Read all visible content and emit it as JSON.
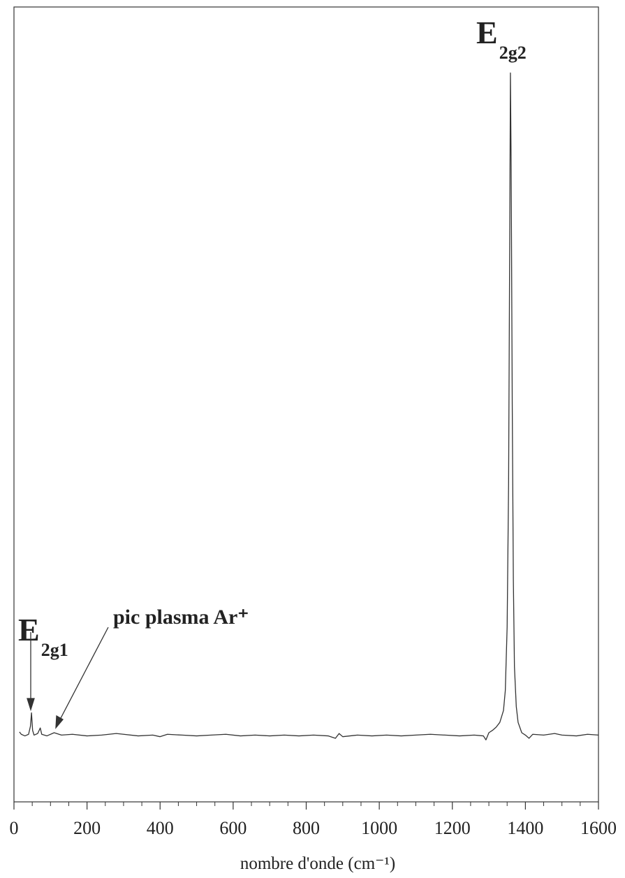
{
  "chart_data": {
    "type": "line",
    "xlabel": "nombre d'onde (cm⁻¹)",
    "annotations": [
      {
        "text": "E",
        "sub": "2g2"
      },
      {
        "text": "E",
        "sub": "2g1"
      },
      {
        "text": "pic plasma Ar⁺"
      }
    ],
    "color": "#333333",
    "xlim": [
      0,
      1600
    ],
    "ylim": [
      0,
      100
    ],
    "xticks": [
      0,
      200,
      400,
      600,
      800,
      1000,
      1200,
      1400,
      1600
    ],
    "xticks_minor": [
      50,
      100,
      150,
      250,
      300,
      350,
      450,
      500,
      550,
      650,
      700,
      750,
      850,
      900,
      950,
      1050,
      1100,
      1150,
      1250,
      1300,
      1350,
      1450,
      1500,
      1550
    ],
    "x": [
      15,
      20,
      30,
      40,
      45,
      48,
      51,
      55,
      65,
      72,
      76,
      90,
      110,
      130,
      160,
      200,
      240,
      280,
      300,
      340,
      380,
      400,
      420,
      460,
      500,
      540,
      580,
      620,
      660,
      700,
      740,
      780,
      820,
      860,
      880,
      890,
      900,
      940,
      980,
      1020,
      1060,
      1100,
      1140,
      1180,
      1220,
      1260,
      1285,
      1292,
      1300,
      1310,
      1320,
      1330,
      1340,
      1345,
      1350,
      1354,
      1357,
      1359,
      1361,
      1364,
      1367,
      1370,
      1375,
      1380,
      1390,
      1400,
      1410,
      1420,
      1450,
      1480,
      1500,
      1540,
      1570,
      1600
    ],
    "values": [
      8.8,
      8.5,
      8.3,
      8.5,
      9.5,
      11.2,
      9.0,
      8.4,
      8.6,
      9.3,
      8.5,
      8.3,
      8.7,
      8.4,
      8.5,
      8.3,
      8.4,
      8.6,
      8.5,
      8.3,
      8.4,
      8.2,
      8.5,
      8.4,
      8.3,
      8.4,
      8.5,
      8.3,
      8.4,
      8.3,
      8.4,
      8.3,
      8.4,
      8.3,
      8.0,
      8.6,
      8.2,
      8.4,
      8.3,
      8.4,
      8.3,
      8.4,
      8.5,
      8.4,
      8.3,
      8.4,
      8.3,
      7.8,
      8.7,
      9.0,
      9.4,
      10.0,
      11.5,
      14,
      22,
      40,
      70,
      91.7,
      80,
      50,
      28,
      17,
      12,
      10,
      8.7,
      8.4,
      8.0,
      8.5,
      8.4,
      8.6,
      8.4,
      8.3,
      8.5,
      8.4
    ]
  }
}
